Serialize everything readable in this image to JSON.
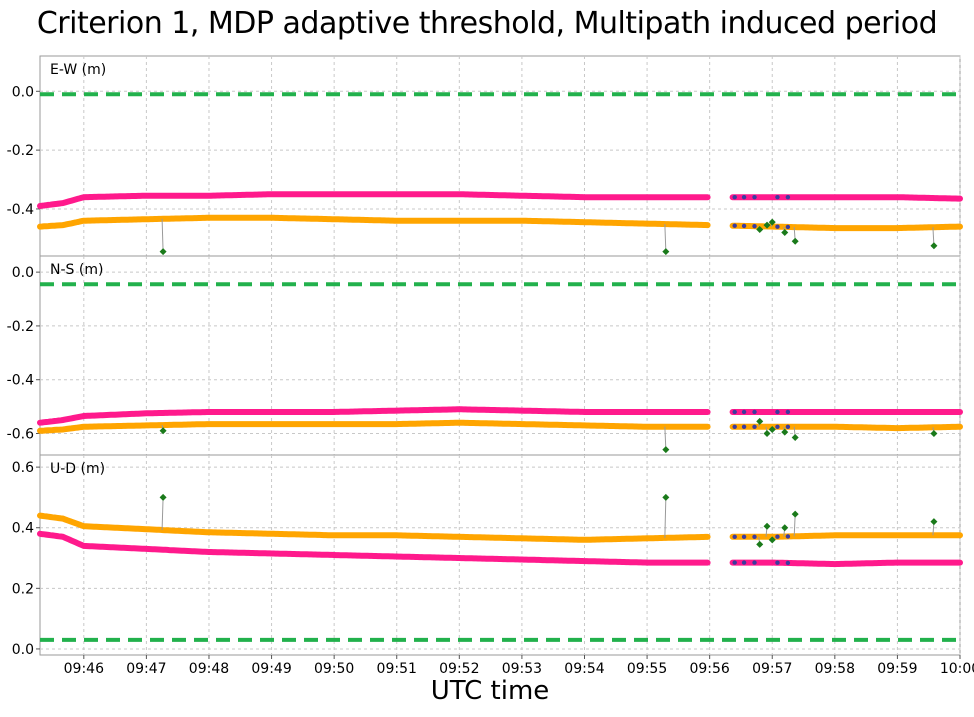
{
  "title": "Criterion 1, MDP adaptive threshold, Multipath induced period",
  "xlabel": "UTC time",
  "chart_data": {
    "type": "line",
    "x_ticks": [
      "09:46",
      "09:47",
      "09:48",
      "09:49",
      "09:50",
      "09:51",
      "09:52",
      "09:53",
      "09:54",
      "09:55",
      "09:56",
      "09:57",
      "09:58",
      "09:59",
      "10:00"
    ],
    "xlim": [
      "09:45:18",
      "10:00:00"
    ],
    "grid": true,
    "colors": {
      "magenta": "#ff1a8c",
      "orange": "#ffa500",
      "threshold": "#22b14c",
      "outlier": "#1a7a1a",
      "gap_marker": "#3b3b9e"
    },
    "panels": [
      {
        "label": "E-W (m)",
        "ylim": [
          -0.56,
          0.12
        ],
        "yticks": [
          "0.0",
          "-0.2",
          "-0.4"
        ],
        "yticks_values": [
          0.0,
          -0.2,
          -0.4
        ],
        "threshold": -0.01,
        "series": [
          {
            "color": "magenta",
            "times": [
              "09:45:18",
              "09:45:40",
              "09:46:00",
              "09:47:00",
              "09:48:00",
              "09:49:00",
              "09:50:00",
              "09:51:00",
              "09:52:00",
              "09:53:00",
              "09:54:00",
              "09:55:00",
              "09:56:00",
              "09:57:00",
              "09:58:00",
              "09:59:00",
              "10:00:00"
            ],
            "values": [
              -0.39,
              -0.38,
              -0.36,
              -0.355,
              -0.355,
              -0.35,
              -0.35,
              -0.35,
              -0.35,
              -0.355,
              -0.36,
              -0.36,
              -0.36,
              -0.36,
              -0.36,
              -0.36,
              -0.365
            ]
          },
          {
            "color": "orange",
            "times": [
              "09:45:18",
              "09:45:40",
              "09:46:00",
              "09:47:00",
              "09:48:00",
              "09:49:00",
              "09:50:00",
              "09:51:00",
              "09:52:00",
              "09:53:00",
              "09:54:00",
              "09:55:00",
              "09:56:00",
              "09:57:00",
              "09:58:00",
              "09:59:00",
              "10:00:00"
            ],
            "values": [
              -0.46,
              -0.455,
              -0.44,
              -0.435,
              -0.43,
              -0.43,
              -0.435,
              -0.44,
              -0.44,
              -0.44,
              -0.445,
              -0.45,
              -0.455,
              -0.46,
              -0.465,
              -0.465,
              -0.46
            ]
          }
        ],
        "outliers": [
          {
            "time": "09:47:16",
            "value": -0.545
          },
          {
            "time": "09:55:18",
            "value": -0.545
          },
          {
            "time": "09:56:48",
            "value": -0.47
          },
          {
            "time": "09:56:55",
            "value": -0.455
          },
          {
            "time": "09:57:00",
            "value": -0.445
          },
          {
            "time": "09:57:12",
            "value": -0.48
          },
          {
            "time": "09:57:22",
            "value": -0.51
          },
          {
            "time": "09:59:35",
            "value": -0.525
          }
        ]
      },
      {
        "label": "N-S (m)",
        "ylim": [
          -0.68,
          0.06
        ],
        "yticks": [
          "0.0",
          "-0.2",
          "-0.4",
          "-0.6"
        ],
        "yticks_values": [
          0.0,
          -0.2,
          -0.4,
          -0.6
        ],
        "threshold": -0.045,
        "series": [
          {
            "color": "magenta",
            "times": [
              "09:45:18",
              "09:45:40",
              "09:46:00",
              "09:47:00",
              "09:48:00",
              "09:49:00",
              "09:50:00",
              "09:51:00",
              "09:52:00",
              "09:53:00",
              "09:54:00",
              "09:55:00",
              "09:56:00",
              "09:57:00",
              "09:58:00",
              "09:59:00",
              "10:00:00"
            ],
            "values": [
              -0.56,
              -0.55,
              -0.535,
              -0.525,
              -0.52,
              -0.52,
              -0.52,
              -0.515,
              -0.51,
              -0.515,
              -0.52,
              -0.52,
              -0.52,
              -0.52,
              -0.52,
              -0.52,
              -0.52
            ]
          },
          {
            "color": "orange",
            "times": [
              "09:45:18",
              "09:45:40",
              "09:46:00",
              "09:47:00",
              "09:48:00",
              "09:49:00",
              "09:50:00",
              "09:51:00",
              "09:52:00",
              "09:53:00",
              "09:54:00",
              "09:55:00",
              "09:56:00",
              "09:57:00",
              "09:58:00",
              "09:59:00",
              "10:00:00"
            ],
            "values": [
              -0.59,
              -0.585,
              -0.575,
              -0.57,
              -0.565,
              -0.565,
              -0.565,
              -0.565,
              -0.56,
              -0.565,
              -0.57,
              -0.575,
              -0.575,
              -0.575,
              -0.575,
              -0.58,
              -0.575
            ]
          }
        ],
        "outliers": [
          {
            "time": "09:47:16",
            "value": -0.59
          },
          {
            "time": "09:55:18",
            "value": -0.66
          },
          {
            "time": "09:56:48",
            "value": -0.555
          },
          {
            "time": "09:56:55",
            "value": -0.6
          },
          {
            "time": "09:57:00",
            "value": -0.585
          },
          {
            "time": "09:57:12",
            "value": -0.595
          },
          {
            "time": "09:57:22",
            "value": -0.615
          },
          {
            "time": "09:59:35",
            "value": -0.6
          }
        ]
      },
      {
        "label": "U-D (m)",
        "ylim": [
          -0.02,
          0.64
        ],
        "yticks": [
          "0.0",
          "0.2",
          "0.4",
          "0.6"
        ],
        "yticks_values": [
          0.0,
          0.2,
          0.4,
          0.6
        ],
        "threshold": 0.03,
        "series": [
          {
            "color": "orange",
            "times": [
              "09:45:18",
              "09:45:40",
              "09:46:00",
              "09:47:00",
              "09:48:00",
              "09:49:00",
              "09:50:00",
              "09:51:00",
              "09:52:00",
              "09:53:00",
              "09:54:00",
              "09:55:00",
              "09:56:00",
              "09:57:00",
              "09:58:00",
              "09:59:00",
              "10:00:00"
            ],
            "values": [
              0.44,
              0.43,
              0.405,
              0.395,
              0.385,
              0.38,
              0.375,
              0.375,
              0.37,
              0.365,
              0.36,
              0.365,
              0.37,
              0.37,
              0.375,
              0.375,
              0.375
            ]
          },
          {
            "color": "magenta",
            "times": [
              "09:45:18",
              "09:45:40",
              "09:46:00",
              "09:47:00",
              "09:48:00",
              "09:49:00",
              "09:50:00",
              "09:51:00",
              "09:52:00",
              "09:53:00",
              "09:54:00",
              "09:55:00",
              "09:56:00",
              "09:57:00",
              "09:58:00",
              "09:59:00",
              "10:00:00"
            ],
            "values": [
              0.38,
              0.37,
              0.34,
              0.33,
              0.32,
              0.315,
              0.31,
              0.305,
              0.3,
              0.295,
              0.29,
              0.285,
              0.285,
              0.285,
              0.28,
              0.285,
              0.285
            ]
          }
        ],
        "outliers": [
          {
            "time": "09:47:16",
            "value": 0.5
          },
          {
            "time": "09:55:18",
            "value": 0.5
          },
          {
            "time": "09:56:48",
            "value": 0.345
          },
          {
            "time": "09:56:55",
            "value": 0.405
          },
          {
            "time": "09:57:00",
            "value": 0.36
          },
          {
            "time": "09:57:12",
            "value": 0.4
          },
          {
            "time": "09:57:22",
            "value": 0.445
          },
          {
            "time": "09:59:35",
            "value": 0.42
          }
        ]
      }
    ]
  }
}
